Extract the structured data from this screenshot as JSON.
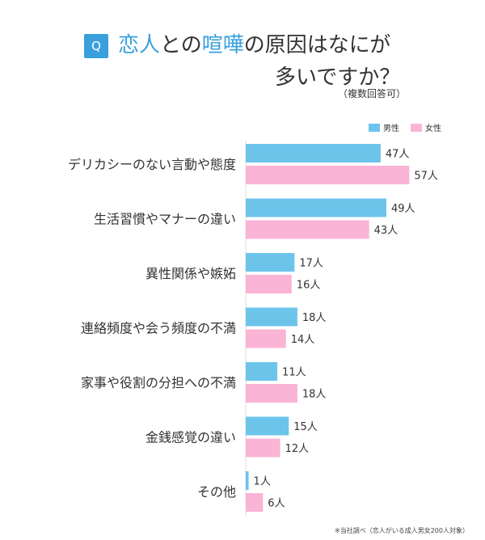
{
  "title": {
    "badge": "Q",
    "part1_hl": "恋人",
    "part2": "との",
    "part3_hl": "喧嘩",
    "part4": "の原因はなにが",
    "line2": "多いですか？",
    "sub": "（複数回答可）"
  },
  "colors": {
    "male": "#6cc4ea",
    "female": "#f9b4d6",
    "accent": "#3aa0dd"
  },
  "legend": {
    "male": "男性",
    "female": "女性"
  },
  "footnote": "※当社調べ（恋人がいる成人男女200人対象）",
  "chart_data": {
    "type": "bar",
    "orientation": "horizontal",
    "categories": [
      "デリカシーのない言動や態度",
      "生活習慣やマナーの違い",
      "異性関係や嫉妬",
      "連絡頻度や会う頻度の不満",
      "家事や役割の分担への不満",
      "金銭感覚の違い",
      "その他"
    ],
    "series": [
      {
        "name": "男性",
        "values": [
          47,
          49,
          17,
          18,
          11,
          15,
          1
        ],
        "labels": [
          "47人",
          "49人",
          "17人",
          "18人",
          "11人",
          "15人",
          "1人"
        ]
      },
      {
        "name": "女性",
        "values": [
          57,
          43,
          16,
          14,
          18,
          12,
          6
        ],
        "labels": [
          "57人",
          "43人",
          "16人",
          "14人",
          "18人",
          "12人",
          "6人"
        ]
      }
    ],
    "legend_position": "top-right",
    "grid": false
  }
}
